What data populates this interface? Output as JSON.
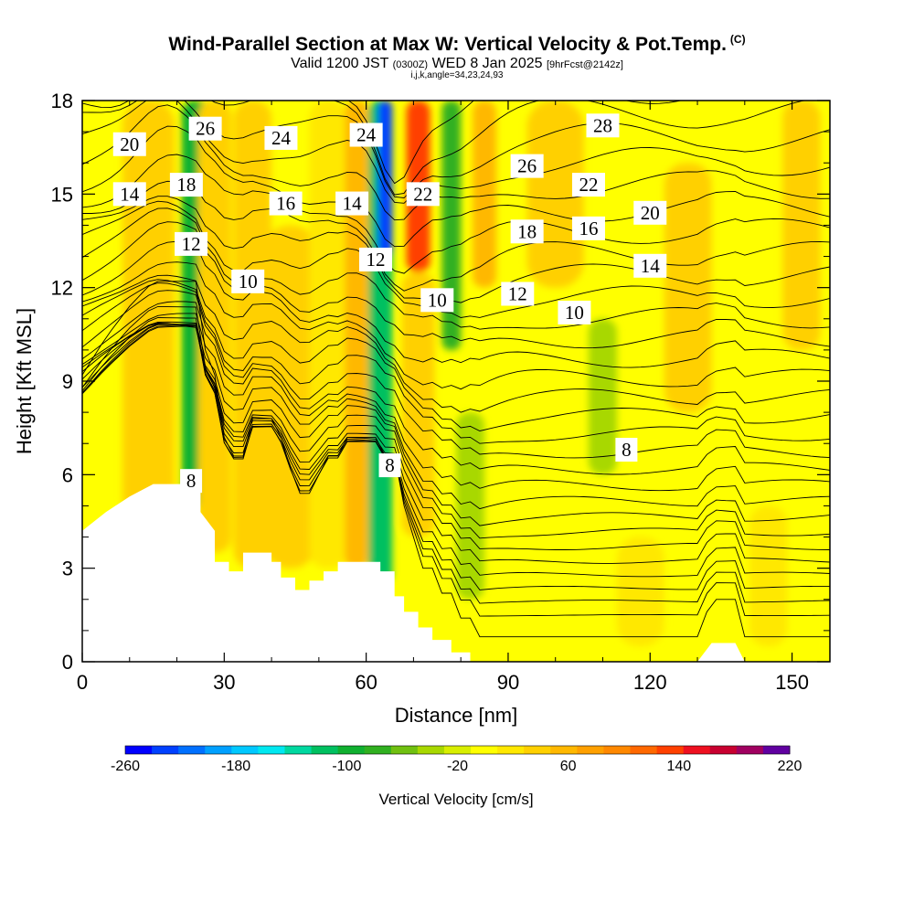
{
  "header": {
    "title": "Wind-Parallel Section at Max W: Vertical Velocity & Pot.Temp.",
    "copyright": "(C)",
    "valid_prefix": "Valid 1200 JST",
    "valid_utc": "(0300Z)",
    "valid_date": "WED 8 Jan 2025",
    "forecast": "[9hrFcst@2142z]",
    "grid_info": "i,j,k,angle=34,23,24,93"
  },
  "chart_data": {
    "type": "heatmap",
    "xlabel": "Distance [nm]",
    "ylabel": "Height [Kft MSL]",
    "xlim": [
      0,
      158
    ],
    "ylim": [
      0,
      18
    ],
    "xticks": [
      0,
      30,
      60,
      90,
      120,
      150
    ],
    "yticks": [
      0,
      3,
      6,
      9,
      12,
      15,
      18
    ],
    "colorbar": {
      "label": "Vertical Velocity [cm/s]",
      "min": -260,
      "max": 220,
      "step": 20,
      "tick_values": [
        -260,
        -180,
        -100,
        -20,
        60,
        140,
        220
      ],
      "tick_labels": [
        "-260",
        "-180",
        "-100",
        "-20",
        "60",
        "140",
        "220"
      ],
      "colors": [
        "#0000ff",
        "#0040ff",
        "#0070ff",
        "#00a0ff",
        "#00c8ff",
        "#00e8f0",
        "#00d8a0",
        "#00c060",
        "#10b030",
        "#30b020",
        "#70c010",
        "#a8d800",
        "#d8ee00",
        "#ffff00",
        "#ffe800",
        "#ffd000",
        "#ffb800",
        "#ffa000",
        "#ff8800",
        "#ff6800",
        "#ff4000",
        "#ee1020",
        "#c80030",
        "#a00060",
        "#6000a0"
      ]
    },
    "terrain_profile": [
      [
        0,
        4.2
      ],
      [
        5,
        4.8
      ],
      [
        10,
        5.3
      ],
      [
        15,
        5.7
      ],
      [
        25,
        5.7
      ],
      [
        25,
        4.8
      ],
      [
        28,
        4.2
      ],
      [
        28,
        3.2
      ],
      [
        31,
        3.2
      ],
      [
        31,
        2.9
      ],
      [
        34,
        2.9
      ],
      [
        34,
        3.5
      ],
      [
        40,
        3.5
      ],
      [
        40,
        3.2
      ],
      [
        42,
        3.2
      ],
      [
        42,
        2.7
      ],
      [
        45,
        2.7
      ],
      [
        45,
        2.3
      ],
      [
        48,
        2.3
      ],
      [
        48,
        2.6
      ],
      [
        51,
        2.6
      ],
      [
        51,
        2.9
      ],
      [
        54,
        2.9
      ],
      [
        54,
        3.2
      ],
      [
        60,
        3.2
      ],
      [
        63,
        3.2
      ],
      [
        63,
        2.9
      ],
      [
        66,
        2.9
      ],
      [
        66,
        2.1
      ],
      [
        68,
        2.1
      ],
      [
        68,
        1.6
      ],
      [
        71,
        1.6
      ],
      [
        71,
        1.1
      ],
      [
        74,
        1.1
      ],
      [
        74,
        0.7
      ],
      [
        78,
        0.7
      ],
      [
        78,
        0.3
      ],
      [
        82,
        0.3
      ],
      [
        82,
        0
      ],
      [
        130,
        0
      ],
      [
        133,
        0.6
      ],
      [
        138,
        0.6
      ],
      [
        140,
        0
      ],
      [
        158,
        0
      ]
    ],
    "vertical_velocity_bands": [
      {
        "x_center": 14,
        "x_width": 11,
        "z_bottom": 4.5,
        "z_top": 18,
        "value": 40
      },
      {
        "x_center": 24,
        "x_width": 6,
        "z_bottom": 5,
        "z_top": 18,
        "value": -90
      },
      {
        "x_center": 28,
        "x_width": 7,
        "z_bottom": 3.5,
        "z_top": 18,
        "value": 40
      },
      {
        "x_center": 36,
        "x_width": 8,
        "z_bottom": 3,
        "z_top": 18,
        "value": 50
      },
      {
        "x_center": 44,
        "x_width": 10,
        "z_bottom": 3,
        "z_top": 14,
        "value": 40
      },
      {
        "x_center": 52,
        "x_width": 8,
        "z_bottom": 3,
        "z_top": 18,
        "value": 20
      },
      {
        "x_center": 58,
        "x_width": 5,
        "z_bottom": 3,
        "z_top": 18,
        "value": 60
      },
      {
        "x_center": 63,
        "x_width": 5,
        "z_bottom": 2.5,
        "z_top": 18,
        "value": -110
      },
      {
        "x_center": 64,
        "x_width": 3,
        "z_bottom": 13,
        "z_top": 18,
        "value": -240
      },
      {
        "x_center": 71,
        "x_width": 5,
        "z_bottom": 12.5,
        "z_top": 18,
        "value": 140
      },
      {
        "x_center": 71,
        "x_width": 7,
        "z_bottom": 4,
        "z_top": 12.5,
        "value": 50
      },
      {
        "x_center": 78,
        "x_width": 4,
        "z_bottom": 10,
        "z_top": 18,
        "value": -80
      },
      {
        "x_center": 82,
        "x_width": 6,
        "z_bottom": 2,
        "z_top": 8,
        "value": -40
      },
      {
        "x_center": 85,
        "x_width": 5,
        "z_bottom": 12,
        "z_top": 18,
        "value": 60
      },
      {
        "x_center": 100,
        "x_width": 12,
        "z_bottom": 12,
        "z_top": 18,
        "value": 50
      },
      {
        "x_center": 110,
        "x_width": 6,
        "z_bottom": 6,
        "z_top": 11,
        "value": -30
      },
      {
        "x_center": 118,
        "x_width": 10,
        "z_bottom": 0.5,
        "z_top": 4,
        "value": 30
      },
      {
        "x_center": 128,
        "x_width": 10,
        "z_bottom": 8,
        "z_top": 16,
        "value": 40
      },
      {
        "x_center": 145,
        "x_width": 8,
        "z_bottom": 0.5,
        "z_top": 5,
        "value": 30
      },
      {
        "x_center": 152,
        "x_width": 8,
        "z_bottom": 10,
        "z_top": 18,
        "value": 40
      }
    ],
    "potential_temperature_contours": {
      "labeled_values": [
        8,
        10,
        12,
        14,
        16,
        18,
        20,
        22,
        24,
        26,
        28
      ],
      "labels": [
        {
          "text": "20",
          "x": 10,
          "z": 16.6
        },
        {
          "text": "26",
          "x": 26,
          "z": 17.1
        },
        {
          "text": "24",
          "x": 42,
          "z": 16.8
        },
        {
          "text": "24",
          "x": 60,
          "z": 16.9
        },
        {
          "text": "28",
          "x": 110,
          "z": 17.2
        },
        {
          "text": "18",
          "x": 22,
          "z": 15.3
        },
        {
          "text": "14",
          "x": 10,
          "z": 15.0
        },
        {
          "text": "16",
          "x": 43,
          "z": 14.7
        },
        {
          "text": "14",
          "x": 57,
          "z": 14.7
        },
        {
          "text": "22",
          "x": 72,
          "z": 15.0
        },
        {
          "text": "26",
          "x": 94,
          "z": 15.9
        },
        {
          "text": "22",
          "x": 107,
          "z": 15.3
        },
        {
          "text": "20",
          "x": 120,
          "z": 14.4
        },
        {
          "text": "18",
          "x": 94,
          "z": 13.8
        },
        {
          "text": "16",
          "x": 107,
          "z": 13.9
        },
        {
          "text": "12",
          "x": 23,
          "z": 13.4
        },
        {
          "text": "12",
          "x": 62,
          "z": 12.9
        },
        {
          "text": "14",
          "x": 120,
          "z": 12.7
        },
        {
          "text": "10",
          "x": 35,
          "z": 12.2
        },
        {
          "text": "12",
          "x": 92,
          "z": 11.8
        },
        {
          "text": "10",
          "x": 75,
          "z": 11.6
        },
        {
          "text": "10",
          "x": 104,
          "z": 11.2
        },
        {
          "text": "8",
          "x": 115,
          "z": 6.8
        },
        {
          "text": "8",
          "x": 65,
          "z": 6.3
        },
        {
          "text": "8",
          "x": 23,
          "z": 5.8
        }
      ]
    }
  }
}
